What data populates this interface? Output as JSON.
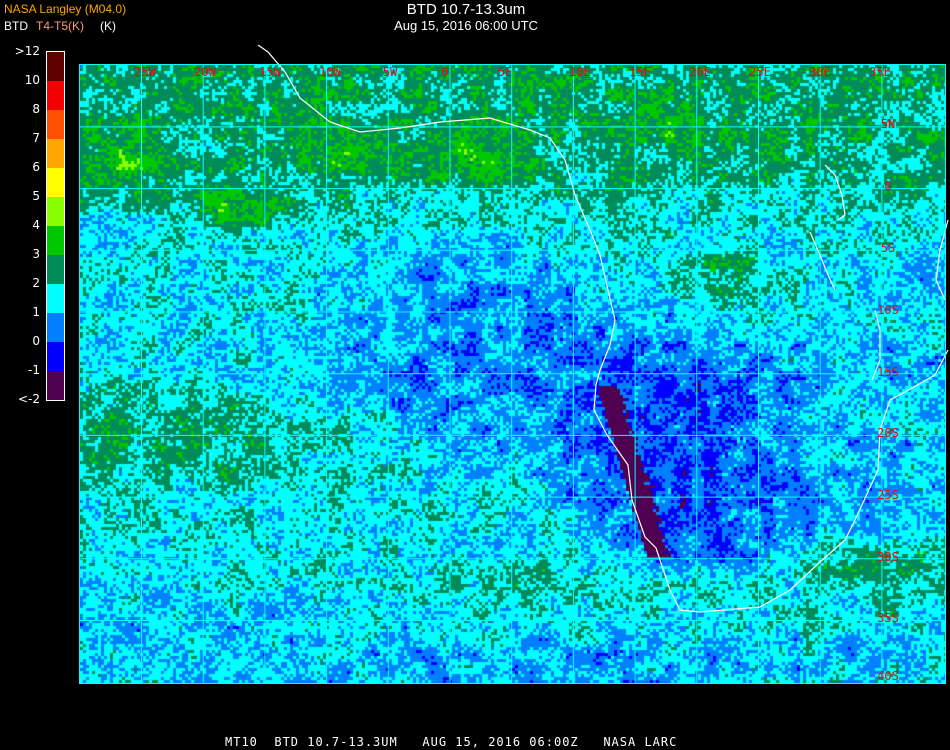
{
  "header": {
    "title": "BTD 10.7-13.3um",
    "subtitle": "Aug 15, 2016 06:00 UTC",
    "credit": "NASA Langley (M04.0)",
    "legend_title": "BTD",
    "legend_units": "T4-T5(K)",
    "legend_units_overlay": "(K)"
  },
  "colorbar": {
    "labels": [
      ">12",
      "10",
      "8",
      "7",
      "6",
      "5",
      "4",
      "3",
      "2",
      "1",
      "0",
      "-1",
      "<-2"
    ],
    "colors": [
      "#600000",
      "#f00000",
      "#ff5000",
      "#ffa500",
      "#ffff00",
      "#88ff00",
      "#00c800",
      "#008c5a",
      "#00ffff",
      "#0080ff",
      "#0000ff",
      "#500050"
    ]
  },
  "map": {
    "longitude_labels": [
      "25W",
      "20W",
      "15W",
      "10W",
      "5W",
      "0",
      "5E",
      "10E",
      "15E",
      "20E",
      "25E",
      "30E",
      "35E"
    ],
    "latitude_labels": [
      "5N",
      "0",
      "5S",
      "10S",
      "15S",
      "20S",
      "25S",
      "30S",
      "35S",
      "40S"
    ],
    "grid_color": "#00ffff",
    "label_color": "#ff0000",
    "coastline_color": "#ffffff"
  },
  "footer": {
    "text": "MT10  BTD 10.7-13.3UM   AUG 15, 2016 06:00Z   NASA LARC"
  }
}
